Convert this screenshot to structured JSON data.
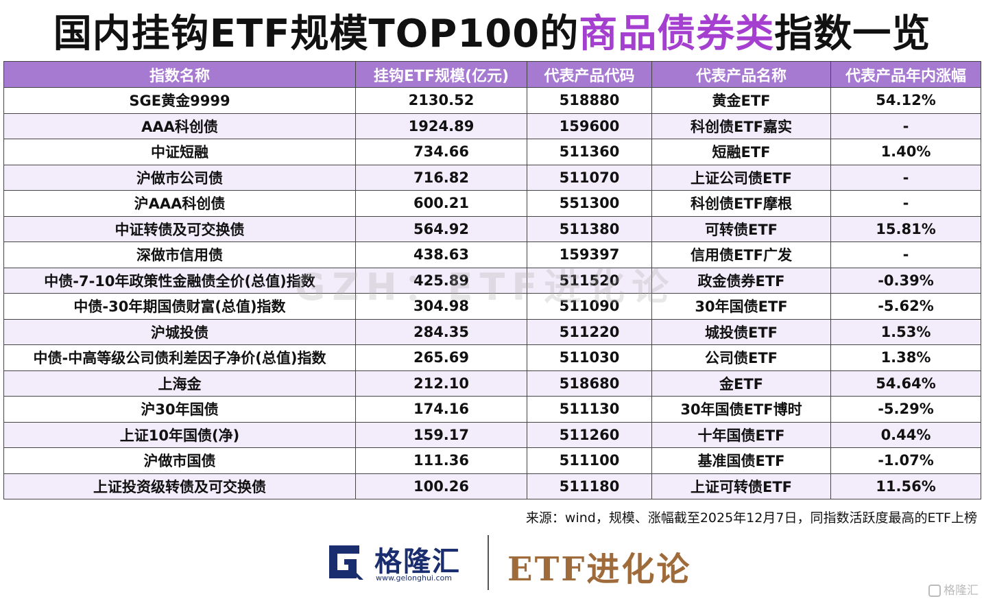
{
  "title": {
    "prefix": "国内挂钩ETF规模TOP100的",
    "highlight": "商品债券类",
    "suffix": "指数一览",
    "highlight_color": "#a53fd0"
  },
  "table": {
    "header_color": "#a77ad2",
    "stripe_color": "#f3ecfa",
    "headers": [
      "指数名称",
      "挂钩ETF规模(亿元)",
      "代表产品代码",
      "代表产品名称",
      "代表产品年内涨幅"
    ],
    "rows": [
      [
        "SGE黄金9999",
        "2130.52",
        "518880",
        "黄金ETF",
        "54.12%"
      ],
      [
        "AAA科创债",
        "1924.89",
        "159600",
        "科创债ETF嘉实",
        "-"
      ],
      [
        "中证短融",
        "734.66",
        "511360",
        "短融ETF",
        "1.40%"
      ],
      [
        "沪做市公司债",
        "716.82",
        "511070",
        "上证公司债ETF",
        "-"
      ],
      [
        "沪AAA科创债",
        "600.21",
        "551300",
        "科创债ETF摩根",
        "-"
      ],
      [
        "中证转债及可交换债",
        "564.92",
        "511380",
        "可转债ETF",
        "15.81%"
      ],
      [
        "深做市信用债",
        "438.63",
        "159397",
        "信用债ETF广发",
        "-"
      ],
      [
        "中债-7-10年政策性金融债全价(总值)指数",
        "425.89",
        "511520",
        "政金债券ETF",
        "-0.39%"
      ],
      [
        "中债-30年期国债财富(总值)指数",
        "304.98",
        "511090",
        "30年国债ETF",
        "-5.62%"
      ],
      [
        "沪城投债",
        "284.35",
        "511220",
        "城投债ETF",
        "1.53%"
      ],
      [
        "中债-中高等级公司债利差因子净价(总值)指数",
        "265.69",
        "511030",
        "公司债ETF",
        "1.38%"
      ],
      [
        "上海金",
        "212.10",
        "518680",
        "金ETF",
        "54.64%"
      ],
      [
        "沪30年国债",
        "174.16",
        "511130",
        "30年国债ETF博时",
        "-5.29%"
      ],
      [
        "上证10年国债(净)",
        "159.17",
        "511260",
        "十年国债ETF",
        "0.44%"
      ],
      [
        "沪做市国债",
        "111.36",
        "511100",
        "基准国债ETF",
        "-1.07%"
      ],
      [
        "上证投资级转债及可交换债",
        "100.26",
        "511180",
        "上证可转债ETF",
        "11.56%"
      ]
    ]
  },
  "watermark": "GZH：ETF进化论",
  "source_note": "来源：wind，规模、涨幅截至2025年12月7日，同指数活跃度最高的ETF上榜",
  "footer": {
    "logo_name": "格隆汇",
    "logo_url": "www.gelonghui.com",
    "logo_icon": "gelonghui-g-icon",
    "brand": "ETF进化论",
    "corner_mark": "格隆汇"
  }
}
